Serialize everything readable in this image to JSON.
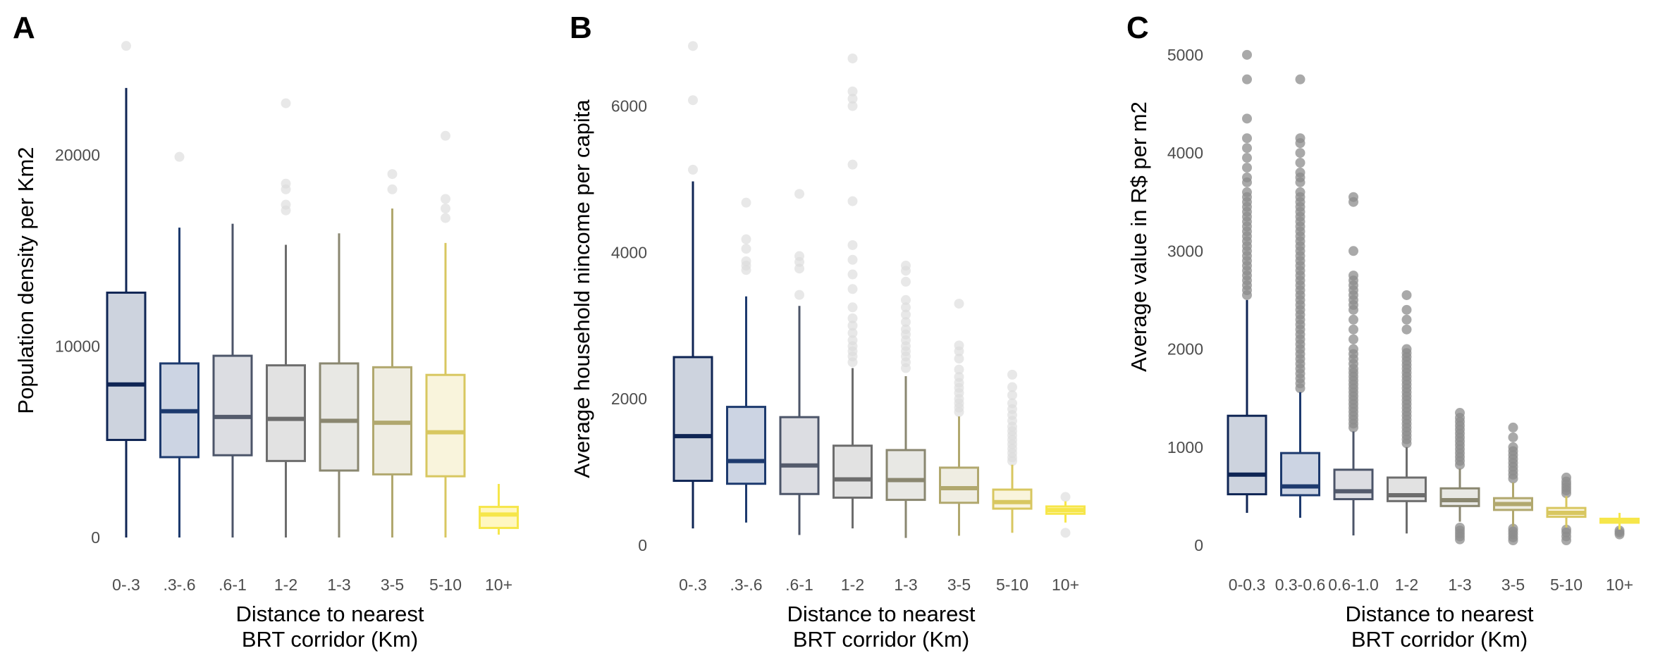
{
  "chart_data": [
    {
      "type": "box",
      "panel_label": "A",
      "xlabel": [
        "Distance to nearest",
        "BRT corridor (Km)"
      ],
      "ylabel": "Population density per Km2",
      "ylim": [
        0,
        26000
      ],
      "yticks": [
        0,
        10000,
        20000
      ],
      "grid": false,
      "categories": [
        "0-.3",
        ".3-.6",
        ".6-1",
        "1-2",
        "1-3",
        "3-5",
        "5-10",
        "10+"
      ],
      "boxes": [
        {
          "whisker_low": 0,
          "q1": 5100,
          "median": 8000,
          "q3": 12800,
          "whisker_high": 23500,
          "outliers": [
            25700
          ]
        },
        {
          "whisker_low": 0,
          "q1": 4200,
          "median": 6600,
          "q3": 9100,
          "whisker_high": 16200,
          "outliers": [
            19900
          ]
        },
        {
          "whisker_low": 0,
          "q1": 4300,
          "median": 6300,
          "q3": 9500,
          "whisker_high": 16400,
          "outliers": []
        },
        {
          "whisker_low": 0,
          "q1": 4000,
          "median": 6200,
          "q3": 9000,
          "whisker_high": 15300,
          "outliers": [
            17100,
            17400,
            18200,
            18500,
            22700
          ]
        },
        {
          "whisker_low": 0,
          "q1": 3500,
          "median": 6100,
          "q3": 9100,
          "whisker_high": 15900,
          "outliers": []
        },
        {
          "whisker_low": 0,
          "q1": 3300,
          "median": 6000,
          "q3": 8900,
          "whisker_high": 17200,
          "outliers": [
            18200,
            19000
          ]
        },
        {
          "whisker_low": 0,
          "q1": 3200,
          "median": 5500,
          "q3": 8500,
          "whisker_high": 15400,
          "outliers": [
            16700,
            17200,
            17700,
            21000
          ]
        },
        {
          "whisker_low": 150,
          "q1": 500,
          "median": 1200,
          "q3": 1600,
          "whisker_high": 2800,
          "outliers": []
        }
      ]
    },
    {
      "type": "box",
      "panel_label": "B",
      "xlabel": [
        "Distance to nearest",
        "BRT corridor (Km)"
      ],
      "ylabel": "Average household nincome per capita",
      "ylim": [
        0,
        6900
      ],
      "yticks": [
        0,
        2000,
        4000,
        6000
      ],
      "grid": false,
      "categories": [
        "0-.3",
        ".3-.6",
        ".6-1",
        "1-2",
        "1-3",
        "3-5",
        "5-10",
        "10+"
      ],
      "boxes": [
        {
          "whisker_low": 230,
          "q1": 880,
          "median": 1490,
          "q3": 2570,
          "whisker_high": 4970,
          "outliers": [
            5130,
            6080,
            6820
          ]
        },
        {
          "whisker_low": 310,
          "q1": 840,
          "median": 1150,
          "q3": 1890,
          "whisker_high": 3400,
          "outliers": [
            3760,
            3820,
            3880,
            4050,
            4180,
            4680
          ]
        },
        {
          "whisker_low": 140,
          "q1": 700,
          "median": 1090,
          "q3": 1750,
          "whisker_high": 3270,
          "outliers": [
            3420,
            3780,
            3870,
            3950,
            4800
          ]
        },
        {
          "whisker_low": 230,
          "q1": 650,
          "median": 900,
          "q3": 1360,
          "whisker_high": 2420,
          "outliers": [
            2500,
            2580,
            2650,
            2720,
            2800,
            2900,
            3000,
            3100,
            3250,
            3500,
            3700,
            3900,
            4100,
            4700,
            5200,
            6000,
            6100,
            6200,
            6650
          ]
        },
        {
          "whisker_low": 100,
          "q1": 620,
          "median": 890,
          "q3": 1300,
          "whisker_high": 2310,
          "outliers": [
            2420,
            2500,
            2580,
            2650,
            2720,
            2800,
            2880,
            2950,
            3050,
            3150,
            3250,
            3350,
            3600,
            3750,
            3820
          ]
        },
        {
          "whisker_low": 130,
          "q1": 580,
          "median": 780,
          "q3": 1060,
          "whisker_high": 1760,
          "outliers": [
            1820,
            1880,
            1940,
            2000,
            2080,
            2150,
            2220,
            2300,
            2400,
            2550,
            2650,
            2730,
            3300
          ]
        },
        {
          "whisker_low": 170,
          "q1": 500,
          "median": 590,
          "q3": 760,
          "whisker_high": 1100,
          "outliers": [
            1150,
            1200,
            1260,
            1320,
            1380,
            1440,
            1500,
            1560,
            1620,
            1700,
            1780,
            1860,
            1940,
            2050,
            2160,
            2330
          ]
        },
        {
          "whisker_low": 310,
          "q1": 430,
          "median": 480,
          "q3": 530,
          "whisker_high": 600,
          "outliers": [
            170,
            660
          ]
        }
      ]
    },
    {
      "type": "box",
      "panel_label": "C",
      "xlabel": [
        "Distance to nearest",
        "BRT corridor (Km)"
      ],
      "ylabel": "Average value in R$ per m2",
      "ylim": [
        0,
        5200
      ],
      "yticks": [
        0,
        1000,
        2000,
        3000,
        4000,
        5000
      ],
      "grid": false,
      "categories": [
        "0-0.3",
        "0.3-0.6",
        "0.6-1.0",
        "1-2",
        "1-3",
        "3-5",
        "5-10",
        "10+"
      ],
      "boxes": [
        {
          "whisker_low": 330,
          "q1": 520,
          "median": 720,
          "q3": 1320,
          "whisker_high": 2500,
          "outliers": [
            2550,
            2600,
            2650,
            2700,
            2750,
            2800,
            2850,
            2900,
            2950,
            3000,
            3050,
            3100,
            3150,
            3200,
            3250,
            3300,
            3350,
            3400,
            3450,
            3500,
            3550,
            3600,
            3700,
            3750,
            3850,
            3950,
            4050,
            4150,
            4350,
            4750,
            5000
          ]
        },
        {
          "whisker_low": 280,
          "q1": 510,
          "median": 600,
          "q3": 940,
          "whisker_high": 1560,
          "outliers": [
            1600,
            1650,
            1700,
            1750,
            1800,
            1850,
            1900,
            1950,
            2000,
            2050,
            2100,
            2150,
            2200,
            2250,
            2300,
            2350,
            2400,
            2450,
            2500,
            2550,
            2600,
            2650,
            2700,
            2750,
            2800,
            2850,
            2900,
            2950,
            3000,
            3050,
            3100,
            3150,
            3200,
            3250,
            3300,
            3350,
            3400,
            3450,
            3500,
            3550,
            3600,
            3700,
            3750,
            3800,
            3900,
            4000,
            4100,
            4150,
            4750
          ]
        },
        {
          "whisker_low": 100,
          "q1": 470,
          "median": 550,
          "q3": 770,
          "whisker_high": 1160,
          "outliers": [
            1200,
            1240,
            1280,
            1320,
            1360,
            1400,
            1440,
            1480,
            1520,
            1560,
            1600,
            1640,
            1680,
            1720,
            1760,
            1800,
            1850,
            1900,
            1950,
            2000,
            2100,
            2200,
            2300,
            2400,
            2450,
            2500,
            2550,
            2600,
            2650,
            2700,
            2750,
            3000,
            3500,
            3550
          ]
        },
        {
          "whisker_low": 120,
          "q1": 450,
          "median": 510,
          "q3": 690,
          "whisker_high": 1000,
          "outliers": [
            1040,
            1080,
            1120,
            1160,
            1200,
            1240,
            1280,
            1320,
            1360,
            1400,
            1440,
            1480,
            1520,
            1560,
            1600,
            1640,
            1680,
            1720,
            1760,
            1800,
            1840,
            1880,
            1920,
            1960,
            2000,
            2200,
            2300,
            2400,
            2550
          ]
        },
        {
          "whisker_low": 240,
          "q1": 400,
          "median": 460,
          "q3": 580,
          "whisker_high": 780,
          "outliers": [
            60,
            90,
            120,
            150,
            180,
            820,
            860,
            900,
            940,
            980,
            1020,
            1060,
            1100,
            1140,
            1180,
            1220,
            1260,
            1300,
            1350
          ]
        },
        {
          "whisker_low": 190,
          "q1": 360,
          "median": 420,
          "q3": 480,
          "whisker_high": 640,
          "outliers": [
            50,
            80,
            110,
            140,
            170,
            680,
            720,
            760,
            800,
            840,
            880,
            920,
            960,
            1000,
            1100,
            1200
          ]
        },
        {
          "whisker_low": 180,
          "q1": 290,
          "median": 330,
          "q3": 380,
          "whisker_high": 500,
          "outliers": [
            50,
            90,
            130,
            160,
            530,
            560,
            590,
            620,
            650,
            690
          ]
        },
        {
          "whisker_low": 160,
          "q1": 230,
          "median": 250,
          "q3": 270,
          "whisker_high": 330,
          "outliers": [
            110,
            130,
            150
          ]
        }
      ]
    }
  ],
  "colors": {
    "fills": [
      "#cdd3de",
      "#ccd4e3",
      "#dcdde2",
      "#e2e2e2",
      "#e8e8e4",
      "#efede2",
      "#f9f4dc",
      "#fff7c0"
    ],
    "strokes": [
      "#0f2554",
      "#1d3a6e",
      "#4c5569",
      "#6d6d6d",
      "#8a8770",
      "#b1a86e",
      "#d8c760",
      "#f6e64a"
    ],
    "medians": [
      "#0f2554",
      "#1d3a6e",
      "#545b6c",
      "#6d6d6d",
      "#8a8770",
      "#b1a86e",
      "#d8c760",
      "#f6e64a"
    ],
    "outlier_light": "#dcdcdc",
    "outlier_dark": "#8c8c8c"
  }
}
